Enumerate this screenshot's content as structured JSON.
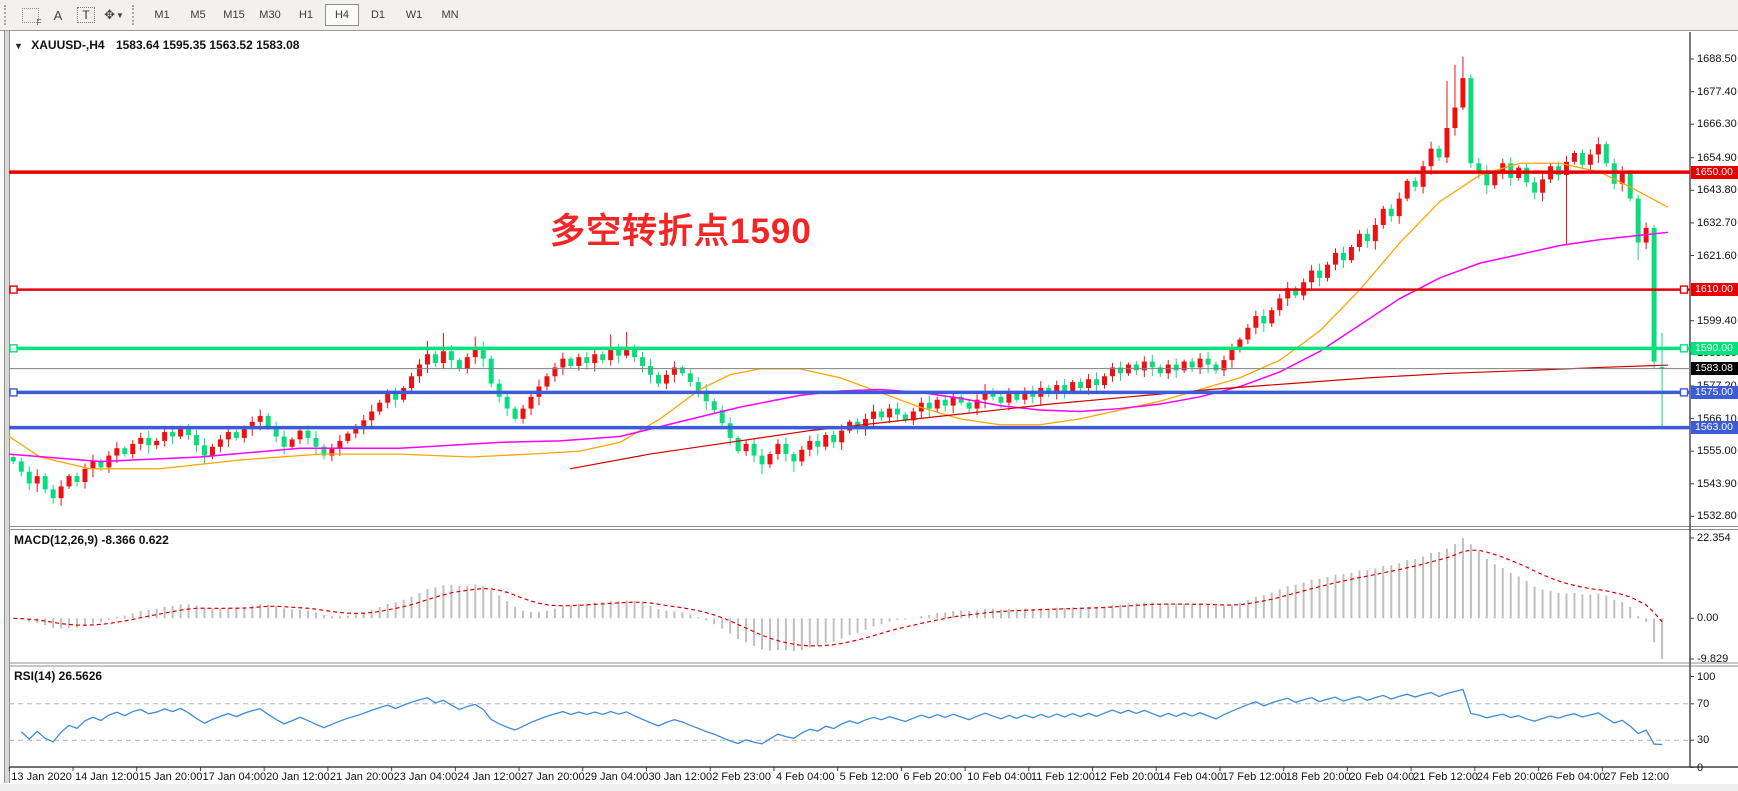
{
  "toolbar": {
    "icons": [
      {
        "name": "templates-grid-f-icon",
        "glyph": "F"
      },
      {
        "name": "text-label-a-icon",
        "glyph": "A"
      },
      {
        "name": "text-tool-t-icon",
        "glyph": "T"
      },
      {
        "name": "cursor-arrows-icon",
        "glyph": "✥"
      },
      {
        "name": "dropdown-caret-icon",
        "glyph": "▼"
      }
    ],
    "timeframes": [
      "M1",
      "M5",
      "M15",
      "M30",
      "H1",
      "H4",
      "D1",
      "W1",
      "MN"
    ],
    "active_timeframe": "H4"
  },
  "header": {
    "collapse_glyph": "▼",
    "title_symbol": "XAUUSD-,H4",
    "title_ohlc": "1583.64 1595.35 1563.52 1583.08"
  },
  "annotation": {
    "text": "多空转折点1590",
    "color": "#f42525"
  },
  "price_axis": {
    "ticks": [
      "1688.50",
      "1677.40",
      "1666.30",
      "1654.90",
      "1643.80",
      "1632.70",
      "1621.60",
      "1599.40",
      "1588.30",
      "1577.20",
      "1566.10",
      "1555.00",
      "1543.90",
      "1532.80"
    ]
  },
  "time_axis": {
    "labels": [
      "13 Jan 2020",
      "14 Jan 12:00",
      "15 Jan 20:00",
      "17 Jan 04:00",
      "20 Jan 12:00",
      "21 Jan 20:00",
      "23 Jan 04:00",
      "24 Jan 12:00",
      "27 Jan 20:00",
      "29 Jan 04:00",
      "30 Jan 12:00",
      "2 Feb 23:00",
      "4 Feb 04:00",
      "5 Feb 12:00",
      "6 Feb 20:00",
      "10 Feb 04:00",
      "11 Feb 12:00",
      "12 Feb 20:00",
      "14 Feb 04:00",
      "17 Feb 12:00",
      "18 Feb 20:00",
      "20 Feb 04:00",
      "21 Feb 12:00",
      "24 Feb 20:00",
      "26 Feb 04:00",
      "27 Feb 12:00"
    ]
  },
  "hlines": [
    {
      "price": 1650.0,
      "label": "1650.00",
      "color": "#e60000",
      "width": 3.5,
      "handles": false
    },
    {
      "price": 1610.0,
      "label": "1610.00",
      "color": "#e60000",
      "width": 2.5,
      "handles": true
    },
    {
      "price": 1590.0,
      "label": "1590.00",
      "color": "#00e57b",
      "width": 3.5,
      "handles": true
    },
    {
      "price": 1575.0,
      "label": "1575.00",
      "color": "#3c5bd7",
      "width": 3.5,
      "handles": true
    },
    {
      "price": 1563.0,
      "label": "1563.00",
      "color": "#3c5bd7",
      "width": 3.5,
      "handles": false
    }
  ],
  "bid_line": {
    "price": 1583.08,
    "label": "1583.08",
    "line_color": "#808080",
    "chip_bg": "#000000"
  },
  "macd": {
    "label": "MACD(12,26,9) -8.366 0.622",
    "params": [
      12,
      26,
      9
    ],
    "value_main": -8.366,
    "value_signal": 0.622,
    "scale": [
      "22.354",
      "0.00",
      "-9.829"
    ]
  },
  "rsi": {
    "label": "RSI(14) 26.5626",
    "period": 14,
    "value": 26.5626,
    "levels": [
      "100",
      "70",
      "30",
      "0"
    ],
    "guides": [
      70,
      30
    ]
  },
  "colors": {
    "up_candle": "#ee1111",
    "down_candle": "#0bdc7e",
    "ma_orange": "#ffa500",
    "ma_magenta": "#ff00ff",
    "ma_red": "#d40000",
    "macd_hist": "#c0c0c0",
    "macd_signal": "#e00000",
    "rsi_line": "#3f8cdb",
    "guide_dash": "#b4b4b4",
    "axis": "#404040"
  },
  "chart_data": {
    "type": "candlestick",
    "symbol": "XAUUSD-",
    "timeframe": "H4",
    "last_ohlc": {
      "open": 1583.64,
      "high": 1595.35,
      "low": 1563.52,
      "close": 1583.08
    },
    "first_open": 1553.0,
    "closes": [
      1551.5,
      1548,
      1544,
      1546.5,
      1542,
      1539,
      1543,
      1546.5,
      1544.5,
      1549,
      1551.5,
      1549.5,
      1553.5,
      1556,
      1554,
      1557.5,
      1559.5,
      1557,
      1558.5,
      1561.5,
      1560,
      1563,
      1560.5,
      1557,
      1553.5,
      1556.5,
      1559,
      1561.5,
      1559.5,
      1562.5,
      1565,
      1567,
      1563.5,
      1560,
      1556.5,
      1559,
      1562,
      1559.5,
      1556.5,
      1553.5,
      1556,
      1558.5,
      1561,
      1563,
      1565.5,
      1568.5,
      1571.5,
      1574.5,
      1572.5,
      1576.5,
      1580.5,
      1584.5,
      1588,
      1585,
      1589,
      1586,
      1583,
      1587,
      1590,
      1586.5,
      1578,
      1573.5,
      1569.5,
      1566,
      1569.5,
      1573.5,
      1577,
      1580.5,
      1583.5,
      1586.5,
      1584,
      1587,
      1585,
      1588,
      1586,
      1589.5,
      1587.5,
      1590,
      1587,
      1584,
      1581,
      1578,
      1581,
      1583.5,
      1581.5,
      1578.5,
      1575.5,
      1572,
      1569,
      1564.5,
      1559.5,
      1555,
      1557.5,
      1553.5,
      1550.5,
      1554,
      1557.5,
      1554,
      1551.5,
      1555.5,
      1558.5,
      1556.5,
      1560.5,
      1558,
      1562,
      1565,
      1562.5,
      1566,
      1568.5,
      1566.5,
      1569.5,
      1567.5,
      1565.5,
      1568.5,
      1571.5,
      1569.5,
      1572.5,
      1570.5,
      1573.5,
      1571.5,
      1569.5,
      1572.5,
      1575.5,
      1573.5,
      1571.5,
      1574.5,
      1572.5,
      1575.5,
      1573.5,
      1576.5,
      1574.5,
      1577.5,
      1575.5,
      1578.5,
      1576.5,
      1579.5,
      1577.5,
      1580.5,
      1583.5,
      1581.5,
      1584.5,
      1582.5,
      1585.5,
      1583.5,
      1581.5,
      1584.5,
      1582.5,
      1585.5,
      1583.5,
      1586.5,
      1584.5,
      1582.5,
      1586,
      1589.5,
      1593,
      1597,
      1601,
      1598.5,
      1603,
      1607,
      1610.5,
      1608,
      1612.5,
      1616.5,
      1614,
      1618.5,
      1622.5,
      1620,
      1624.5,
      1629,
      1626.5,
      1632,
      1637.5,
      1635,
      1641,
      1647,
      1645,
      1652,
      1658,
      1655,
      1665,
      1672,
      1682,
      1653,
      1650,
      1645.5,
      1649.5,
      1653,
      1648,
      1651.5,
      1646.5,
      1643,
      1647.5,
      1652,
      1649,
      1653.5,
      1656.5,
      1652.5,
      1656,
      1659.5,
      1653,
      1646,
      1650,
      1641,
      1626,
      1631,
      1585.5,
      1583.08
    ],
    "wick_overrides": {
      "31": {
        "h": 1569.2
      },
      "52": {
        "h": 1592.5
      },
      "54": {
        "h": 1595.2
      },
      "58": {
        "h": 1594.0
      },
      "75": {
        "h": 1594.8
      },
      "77": {
        "h": 1595.6
      },
      "94": {
        "l": 1547.2
      },
      "98": {
        "l": 1548.0
      },
      "180": {
        "h": 1681.0
      },
      "181": {
        "h": 1686.5
      },
      "182": {
        "h": 1689.3
      },
      "183": {
        "l": 1651.5
      },
      "195": {
        "l": 1625.0
      },
      "204": {
        "l": 1620.0
      },
      "206": {
        "h": 1632.0,
        "l": 1583.2
      },
      "207": {
        "o": 1583.64,
        "h": 1595.35,
        "l": 1563.52,
        "c": 1583.08
      }
    },
    "ma_orange": [
      [
        9,
        1560
      ],
      [
        40,
        1553
      ],
      [
        90,
        1549
      ],
      [
        160,
        1549
      ],
      [
        240,
        1552
      ],
      [
        320,
        1554
      ],
      [
        400,
        1554
      ],
      [
        470,
        1553
      ],
      [
        530,
        1554
      ],
      [
        580,
        1555
      ],
      [
        620,
        1558
      ],
      [
        660,
        1566
      ],
      [
        700,
        1576
      ],
      [
        730,
        1581
      ],
      [
        760,
        1583
      ],
      [
        800,
        1583
      ],
      [
        840,
        1580
      ],
      [
        880,
        1575
      ],
      [
        920,
        1570
      ],
      [
        960,
        1566
      ],
      [
        1000,
        1564
      ],
      [
        1040,
        1564
      ],
      [
        1080,
        1566
      ],
      [
        1120,
        1569
      ],
      [
        1160,
        1572
      ],
      [
        1200,
        1576
      ],
      [
        1240,
        1580
      ],
      [
        1280,
        1586
      ],
      [
        1320,
        1596
      ],
      [
        1360,
        1610
      ],
      [
        1400,
        1626
      ],
      [
        1440,
        1640
      ],
      [
        1480,
        1649
      ],
      [
        1520,
        1653
      ],
      [
        1560,
        1653
      ],
      [
        1600,
        1650
      ],
      [
        1630,
        1645
      ],
      [
        1668,
        1638
      ]
    ],
    "ma_magenta": [
      [
        9,
        1554
      ],
      [
        100,
        1551.5
      ],
      [
        200,
        1553
      ],
      [
        300,
        1556
      ],
      [
        400,
        1556
      ],
      [
        500,
        1558
      ],
      [
        560,
        1558.5
      ],
      [
        620,
        1560
      ],
      [
        680,
        1565
      ],
      [
        740,
        1570
      ],
      [
        800,
        1574
      ],
      [
        840,
        1575.5
      ],
      [
        880,
        1576
      ],
      [
        920,
        1575
      ],
      [
        960,
        1573
      ],
      [
        1000,
        1570.5
      ],
      [
        1040,
        1569
      ],
      [
        1080,
        1568.5
      ],
      [
        1120,
        1569.5
      ],
      [
        1160,
        1571
      ],
      [
        1200,
        1573.5
      ],
      [
        1240,
        1577
      ],
      [
        1280,
        1582
      ],
      [
        1320,
        1589
      ],
      [
        1360,
        1598
      ],
      [
        1400,
        1607
      ],
      [
        1440,
        1614
      ],
      [
        1480,
        1619
      ],
      [
        1520,
        1622
      ],
      [
        1560,
        1625
      ],
      [
        1600,
        1627
      ],
      [
        1668,
        1629.5
      ]
    ],
    "ma_red": [
      [
        570,
        1549
      ],
      [
        650,
        1554
      ],
      [
        730,
        1558
      ],
      [
        810,
        1562
      ],
      [
        890,
        1565
      ],
      [
        970,
        1568
      ],
      [
        1050,
        1571
      ],
      [
        1130,
        1573.5
      ],
      [
        1210,
        1576
      ],
      [
        1290,
        1578
      ],
      [
        1370,
        1580
      ],
      [
        1450,
        1581.5
      ],
      [
        1530,
        1582.5
      ],
      [
        1600,
        1583.5
      ],
      [
        1668,
        1584.3
      ]
    ]
  }
}
